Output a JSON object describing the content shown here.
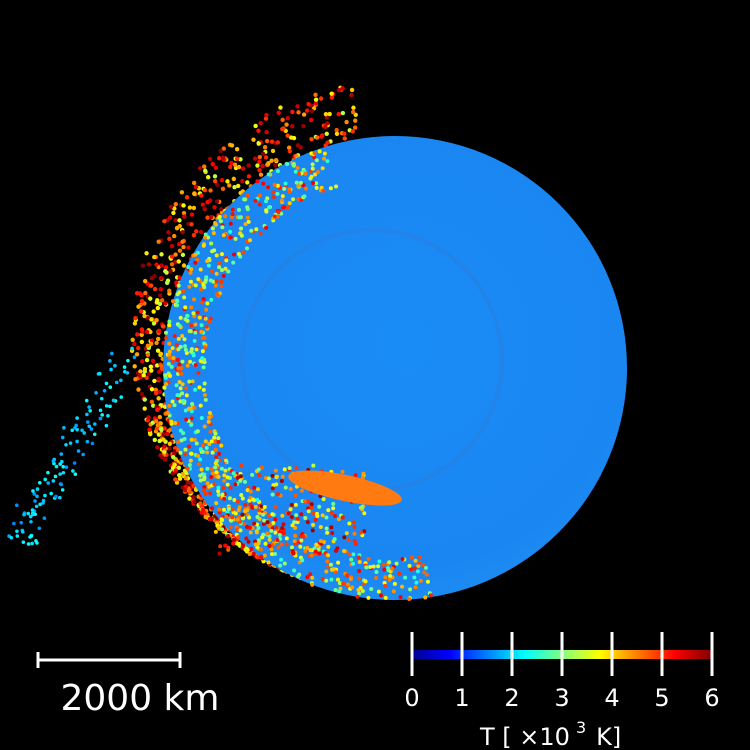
{
  "scale_bar": {
    "label": "2000 km"
  },
  "colorbar": {
    "ticks": [
      0,
      1,
      2,
      3,
      4,
      5,
      6
    ],
    "label": {
      "text": "T [ ×10",
      "exponent": "3",
      "unit": "K]"
    }
  }
}
